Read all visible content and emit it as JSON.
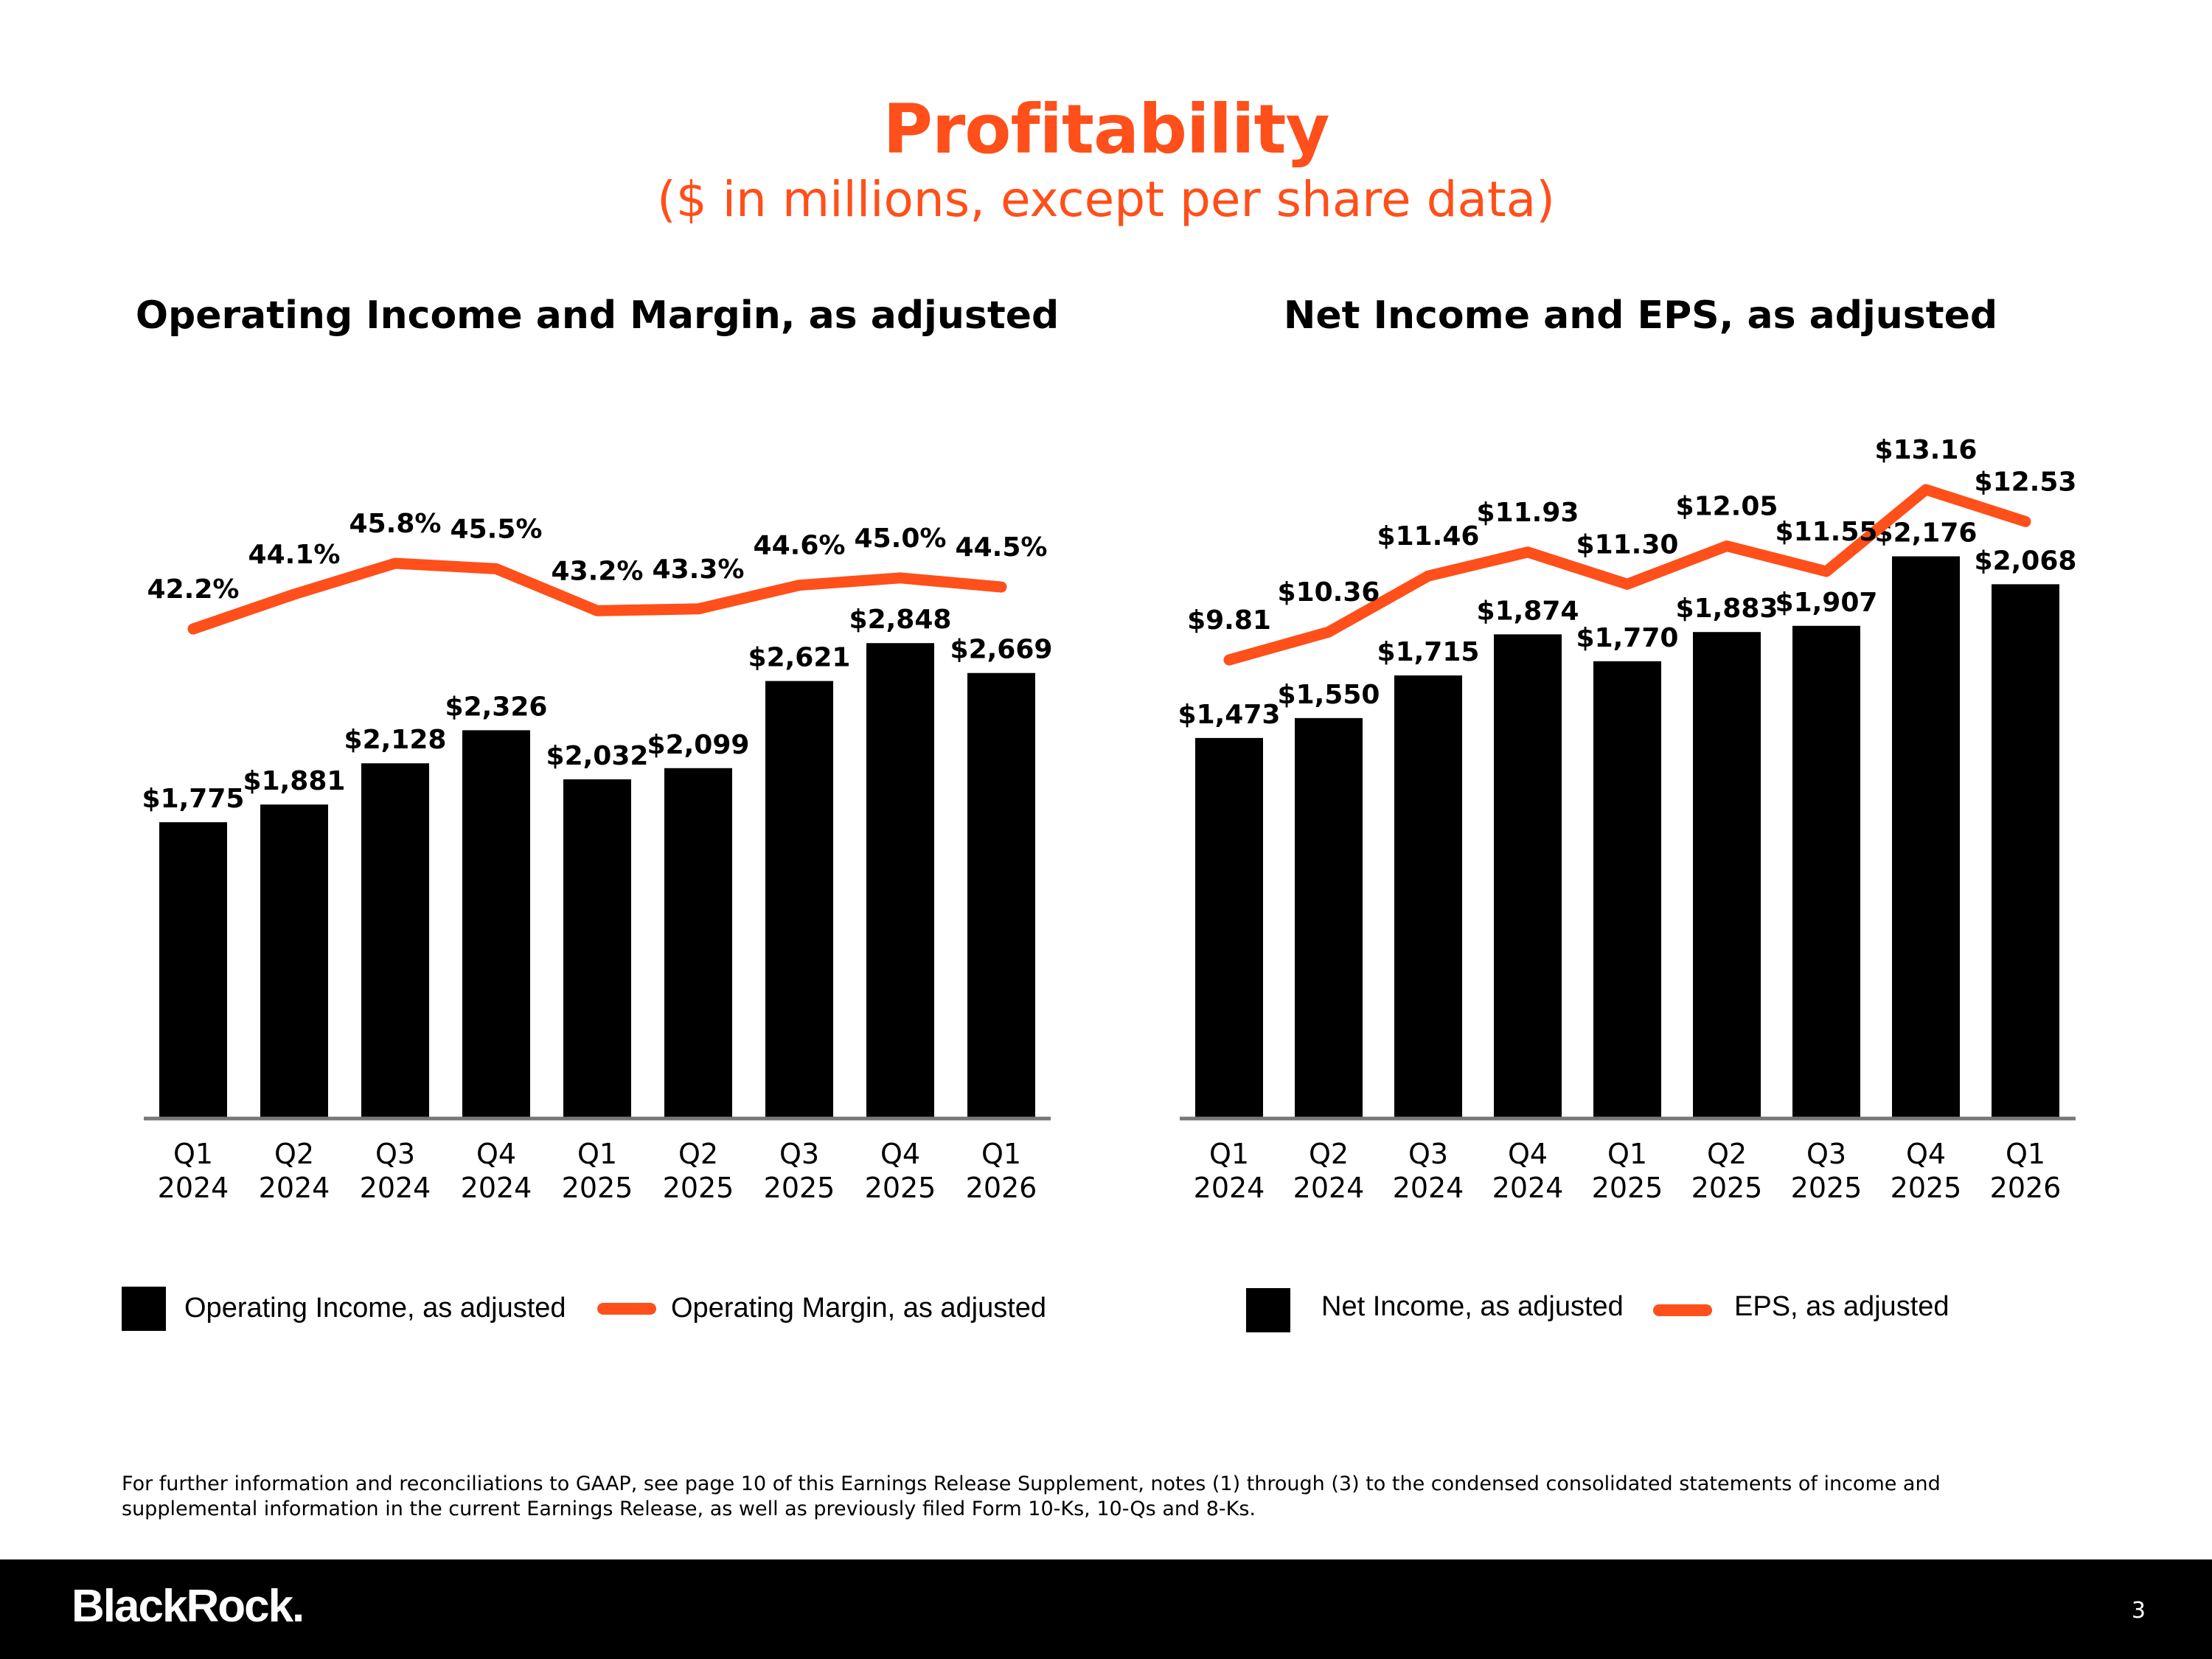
{
  "header": {
    "title": "Profitability",
    "subtitle": "($ in millions, except per share data)"
  },
  "colors": {
    "accent": "#ff4f1a",
    "bar": "#000000",
    "axis": "#777777"
  },
  "chart_data": [
    {
      "type": "bar",
      "title": "Operating Income and Margin, as adjusted",
      "categories": [
        "Q1 2024",
        "Q2 2024",
        "Q3 2024",
        "Q4 2024",
        "Q1 2025",
        "Q2 2025",
        "Q3 2025",
        "Q4 2025",
        "Q1 2026"
      ],
      "category_lines": [
        [
          "Q1",
          "2024"
        ],
        [
          "Q2",
          "2024"
        ],
        [
          "Q3",
          "2024"
        ],
        [
          "Q4",
          "2024"
        ],
        [
          "Q1",
          "2025"
        ],
        [
          "Q2",
          "2025"
        ],
        [
          "Q3",
          "2025"
        ],
        [
          "Q4",
          "2025"
        ],
        [
          "Q1",
          "2026"
        ]
      ],
      "series": [
        {
          "name": "Operating Income, as adjusted",
          "kind": "bar",
          "values": [
            1775,
            1881,
            2128,
            2326,
            2032,
            2099,
            2621,
            2848,
            2669
          ],
          "labels": [
            "$1,775",
            "$1,881",
            "$2,128",
            "$2,326",
            "$2,032",
            "$2,099",
            "$2,621",
            "$2,848",
            "$2,669"
          ]
        },
        {
          "name": "Operating Margin, as adjusted",
          "kind": "line",
          "values": [
            42.2,
            44.1,
            45.8,
            45.5,
            43.2,
            43.3,
            44.6,
            45.0,
            44.5
          ],
          "labels": [
            "42.2%",
            "44.1%",
            "45.8%",
            "45.5%",
            "43.2%",
            "43.3%",
            "44.6%",
            "45.0%",
            "44.5%"
          ]
        }
      ],
      "legend": [
        "Operating Income, as adjusted",
        "Operating Margin, as adjusted"
      ]
    },
    {
      "type": "bar",
      "title": "Net Income and EPS, as adjusted",
      "categories": [
        "Q1 2024",
        "Q2 2024",
        "Q3 2024",
        "Q4 2024",
        "Q1 2025",
        "Q2 2025",
        "Q3 2025",
        "Q4 2025",
        "Q1 2026"
      ],
      "category_lines": [
        [
          "Q1",
          "2024"
        ],
        [
          "Q2",
          "2024"
        ],
        [
          "Q3",
          "2024"
        ],
        [
          "Q4",
          "2024"
        ],
        [
          "Q1",
          "2025"
        ],
        [
          "Q2",
          "2025"
        ],
        [
          "Q3",
          "2025"
        ],
        [
          "Q4",
          "2025"
        ],
        [
          "Q1",
          "2026"
        ]
      ],
      "series": [
        {
          "name": "Net Income, as adjusted",
          "kind": "bar",
          "values": [
            1473,
            1550,
            1715,
            1874,
            1770,
            1883,
            1907,
            2176,
            2068
          ],
          "labels": [
            "$1,473",
            "$1,550",
            "$1,715",
            "$1,874",
            "$1,770",
            "$1,883",
            "$1,907",
            "$2,176",
            "$2,068"
          ]
        },
        {
          "name": "EPS, as adjusted",
          "kind": "line",
          "values": [
            9.81,
            10.36,
            11.46,
            11.93,
            11.3,
            12.05,
            11.55,
            13.16,
            12.53
          ],
          "labels": [
            "$9.81",
            "$10.36",
            "$11.46",
            "$11.93",
            "$11.30",
            "$12.05",
            "$11.55",
            "$13.16",
            "$12.53"
          ]
        }
      ],
      "legend": [
        "Net Income, as adjusted",
        "EPS, as adjusted"
      ]
    }
  ],
  "footnote": "For further information and reconciliations to GAAP, see page 10 of this Earnings Release Supplement, notes (1) through (3) to the condensed consolidated statements of income and supplemental information in the current Earnings Release, as well as previously filed Form 10-Ks, 10-Qs and 8-Ks.",
  "footer": {
    "logo_text": "BlackRock.",
    "page_number": "3"
  }
}
